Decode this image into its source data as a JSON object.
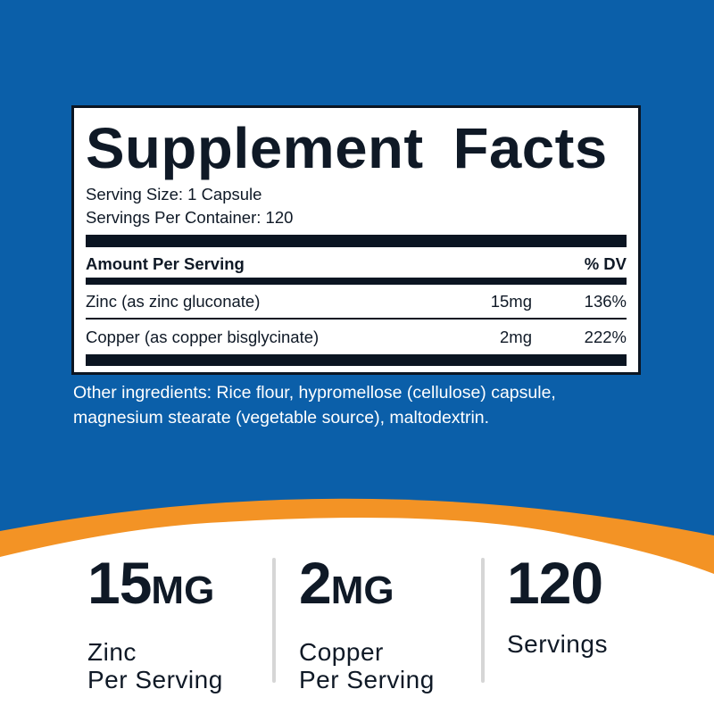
{
  "colors": {
    "background_blue": "#0b5fa9",
    "accent_orange": "#f39325",
    "text_dark": "#0f1926"
  },
  "label": {
    "title": "Supplement Facts",
    "serving_size": "Serving Size: 1 Capsule",
    "servings_per_container": "Servings Per Container: 120",
    "header": {
      "amount": "Amount Per Serving",
      "dv": "% DV"
    },
    "rows": [
      {
        "name": "Zinc (as zinc gluconate)",
        "amount": "15mg",
        "dv": "136%"
      },
      {
        "name": "Copper (as copper bisglycinate)",
        "amount": "2mg",
        "dv": "222%"
      }
    ]
  },
  "other_ingredients": [
    "Other ingredients: Rice flour, hypromellose (cellulose) capsule,",
    "magnesium stearate (vegetable source), maltodextrin."
  ],
  "stats": [
    {
      "value": "15",
      "unit": "MG",
      "line1": "Zinc",
      "line2": "Per Serving"
    },
    {
      "value": "2",
      "unit": "MG",
      "line1": "Copper",
      "line2": "Per Serving"
    },
    {
      "value": "120",
      "unit": "",
      "line1": "Servings",
      "line2": ""
    }
  ]
}
